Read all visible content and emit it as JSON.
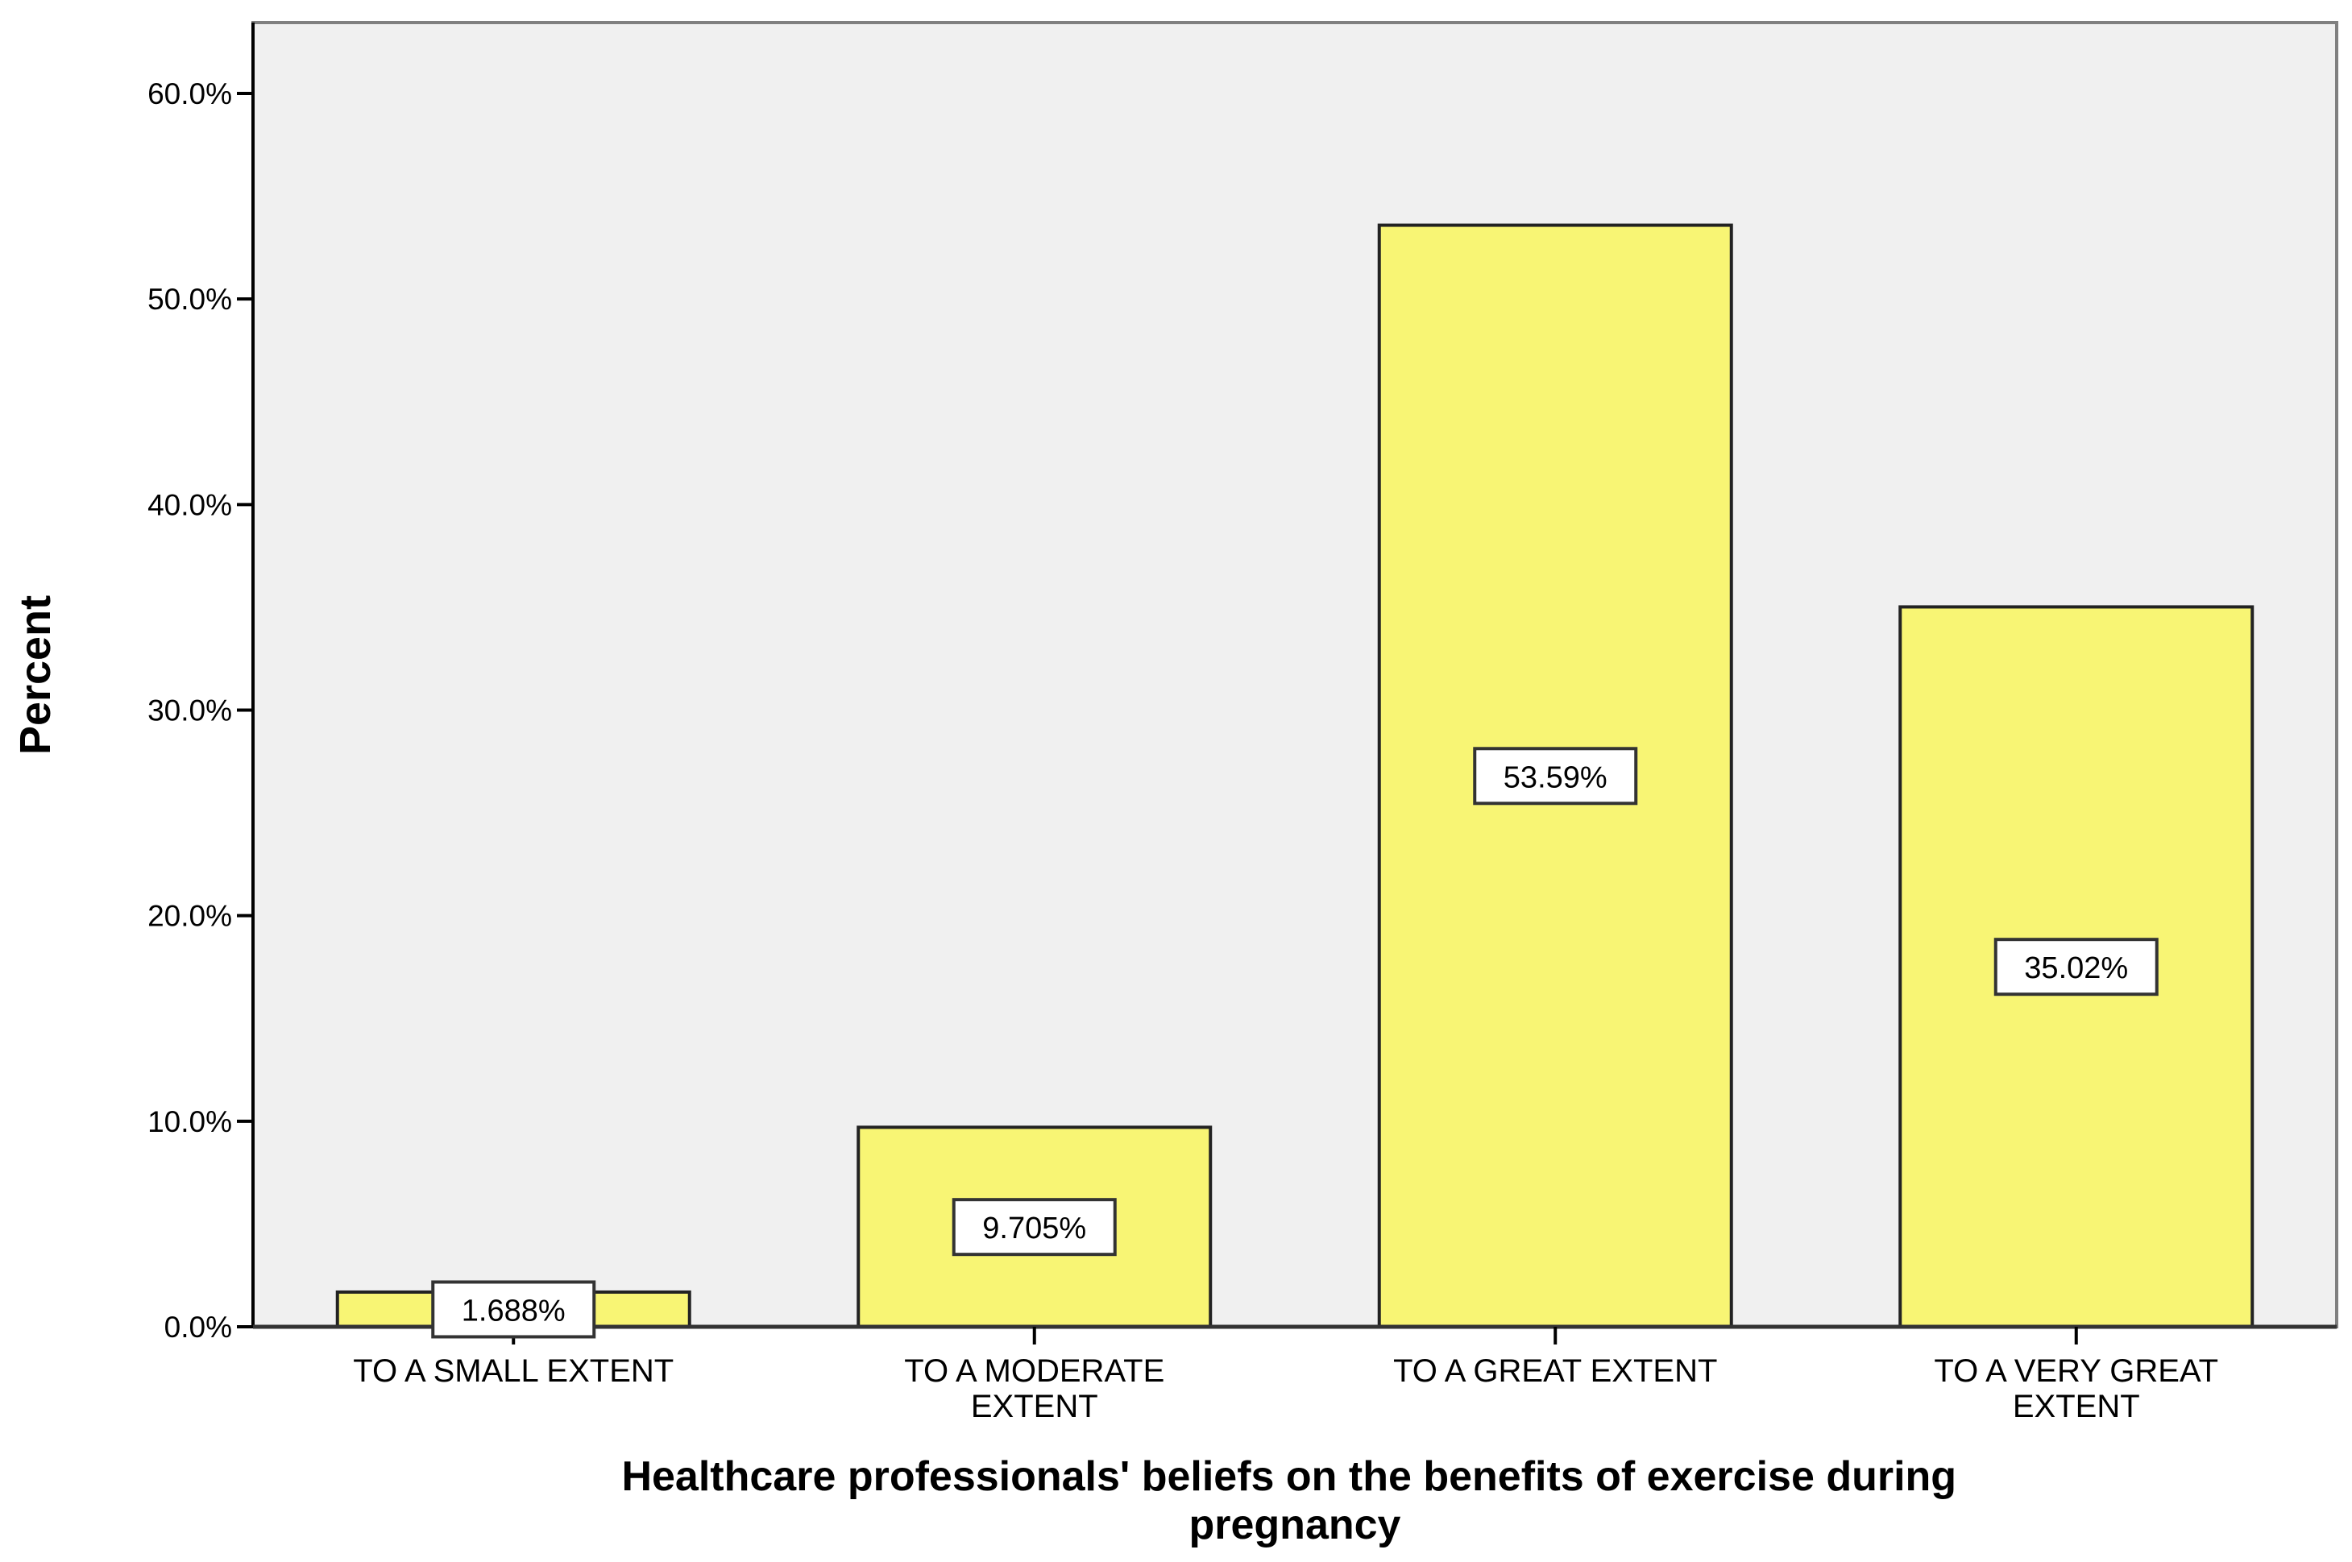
{
  "chart_data": {
    "type": "bar",
    "title": "",
    "xlabel": "Healthcare professionals' beliefs on the benefits of exercise during pregnancy",
    "xlabel_lines": [
      "Healthcare professionals' beliefs on the benefits of exercise during",
      "pregnancy"
    ],
    "ylabel": "Percent",
    "ylim": [
      0,
      60
    ],
    "yticks": [
      0,
      10,
      20,
      30,
      40,
      50,
      60
    ],
    "ytick_labels": [
      "0.0%",
      "10.0%",
      "20.0%",
      "30.0%",
      "40.0%",
      "50.0%",
      "60.0%"
    ],
    "categories": [
      "TO A SMALL EXTENT",
      "TO A MODERATE EXTENT",
      "TO A GREAT EXTENT",
      "TO A VERY GREAT EXTENT"
    ],
    "category_lines": [
      [
        "TO A SMALL EXTENT"
      ],
      [
        "TO A MODERATE",
        "EXTENT"
      ],
      [
        "TO A GREAT EXTENT"
      ],
      [
        "TO A VERY GREAT",
        "EXTENT"
      ]
    ],
    "values": [
      1.688,
      9.705,
      53.59,
      35.02
    ],
    "data_labels": [
      "1.688%",
      "9.705%",
      "53.59%",
      "35.02%"
    ],
    "grid": false,
    "colors": {
      "bar": "#f8f574",
      "plot_background": "#f0f0f0"
    }
  }
}
